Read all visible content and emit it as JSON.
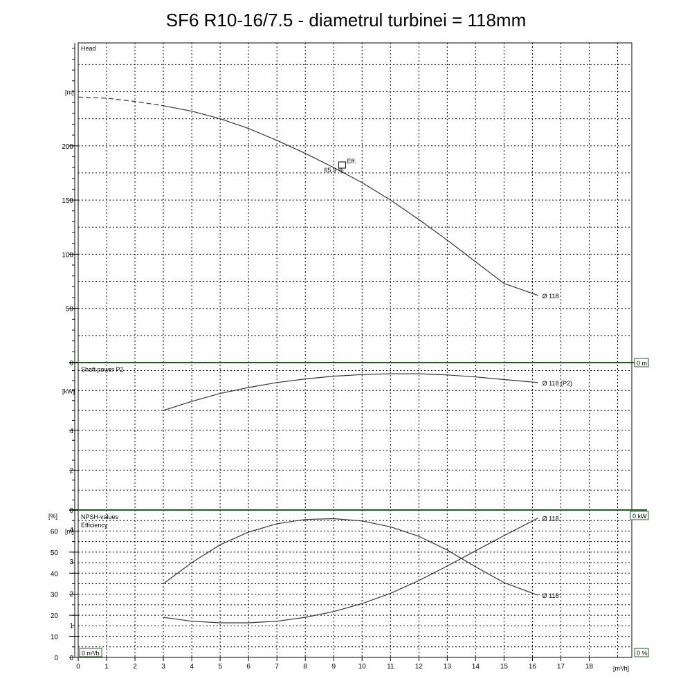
{
  "title": "SF6 R10-16/7.5 - diametrul turbinei = 118mm",
  "x_axis": {
    "unit": "[m³/h]",
    "ticks": [
      0,
      1,
      2,
      3,
      4,
      5,
      6,
      7,
      8,
      9,
      10,
      11,
      12,
      13,
      14,
      15,
      16,
      17,
      18
    ],
    "range": [
      0,
      19.5
    ]
  },
  "colors": {
    "curve": "#333333",
    "panel_border": "#1f5c1f",
    "grid": "#000000"
  },
  "chart_data": [
    {
      "type": "line",
      "panel": "head",
      "label": "Head",
      "ylabel": "[m]",
      "yticks": [
        0,
        50,
        100,
        150,
        200
      ],
      "ylim": [
        0,
        295
      ],
      "right_label": "0 m",
      "series": [
        {
          "name": "Ø 118",
          "style": "dashed",
          "x": [
            0,
            1,
            2,
            3
          ],
          "y": [
            245,
            244,
            241,
            237
          ]
        },
        {
          "name": "Ø 118",
          "style": "solid",
          "x": [
            3,
            4,
            5,
            6,
            7,
            8,
            9,
            10,
            11,
            12,
            13,
            14,
            15,
            16.2
          ],
          "y": [
            237,
            232,
            225,
            216,
            205,
            193,
            180,
            166,
            150,
            132,
            113,
            93,
            73,
            62
          ]
        }
      ],
      "annotations": [
        {
          "text": "Eff.",
          "x": 9.3,
          "y": 182
        },
        {
          "text": "65.9 %",
          "x": 9.3,
          "y": 182
        }
      ]
    },
    {
      "type": "line",
      "panel": "power",
      "label": "Shaft power P2",
      "ylabel": "[kW]",
      "yticks": [
        0,
        2,
        4
      ],
      "ylim": [
        0,
        7.4
      ],
      "right_label": "0 kW",
      "series": [
        {
          "name": "Ø 118 (P2)",
          "x": [
            3,
            4,
            5,
            6,
            7,
            8,
            9,
            10,
            11,
            12,
            13,
            14,
            15,
            16.2
          ],
          "y": [
            5.0,
            5.45,
            5.85,
            6.15,
            6.4,
            6.58,
            6.72,
            6.8,
            6.84,
            6.84,
            6.78,
            6.68,
            6.55,
            6.4
          ]
        }
      ]
    },
    {
      "type": "line",
      "panel": "npsh_eff",
      "labels": [
        "NPSH-values",
        "Efficiency"
      ],
      "ylabel_left_outer": "[%]",
      "ylabel_left_inner": "[m]",
      "yticks_efficiency": [
        0,
        10,
        20,
        30,
        40,
        50,
        60
      ],
      "yticks_npsh": [
        0,
        1,
        2,
        3,
        4
      ],
      "ylim_efficiency": [
        0,
        70
      ],
      "ylim_npsh": [
        0,
        4.6
      ],
      "right_label": "0 %",
      "bottom_label": "0 m³/h",
      "series": [
        {
          "name": "Ø 118",
          "axis": "efficiency",
          "x": [
            3,
            4,
            5,
            6,
            7,
            8,
            9,
            10,
            11,
            12,
            13,
            14,
            15,
            16.2
          ],
          "y": [
            35,
            45,
            53.5,
            59.5,
            63.5,
            65.5,
            65.9,
            64.8,
            62.0,
            57.5,
            51.0,
            43.0,
            35.5,
            29.5
          ]
        },
        {
          "name": "Ø 118",
          "axis": "npsh",
          "x": [
            3,
            4,
            5,
            6,
            7,
            8,
            9,
            10,
            11,
            12,
            13,
            14,
            15,
            16.2
          ],
          "y": [
            1.25,
            1.13,
            1.08,
            1.08,
            1.13,
            1.25,
            1.43,
            1.68,
            2.0,
            2.4,
            2.85,
            3.33,
            3.8,
            4.35
          ]
        }
      ]
    }
  ]
}
